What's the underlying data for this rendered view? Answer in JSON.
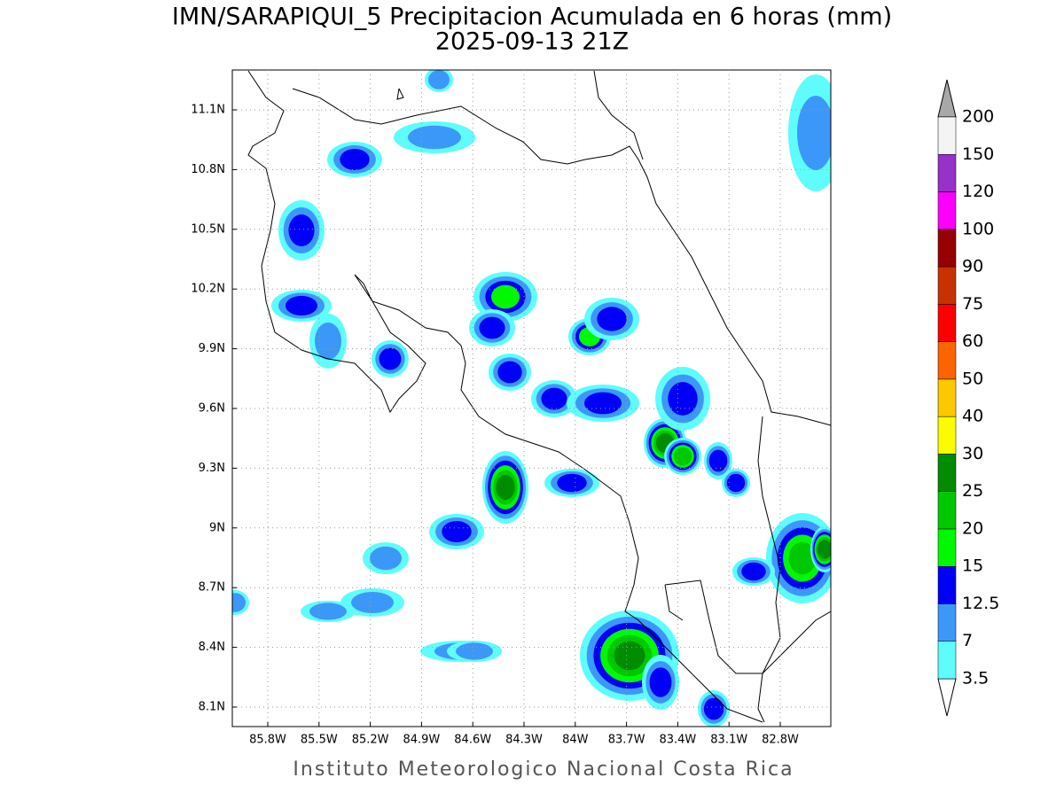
{
  "title": "IMN/SARAPIQUI_5 Precipitacion Acumulada en 6 horas (mm)",
  "subtitle": "2025-09-13 21Z",
  "lat_ticks": [
    "11.1N",
    "10.8N",
    "10.5N",
    "10.2N",
    "9.9N",
    "9.6N",
    "9.3N",
    "9N",
    "8.7N",
    "8.4N",
    "8.1N"
  ],
  "lon_ticks": [
    "85.8W",
    "85.5W",
    "85.2W",
    "84.9W",
    "84.6W",
    "84.3W",
    "84W",
    "83.7W",
    "83.4W",
    "83.1W",
    "82.8W"
  ],
  "colorbar": {
    "levels": [
      "3.5",
      "7",
      "12.5",
      "15",
      "20",
      "25",
      "30",
      "40",
      "50",
      "60",
      "75",
      "90",
      "100",
      "120",
      "150",
      "200"
    ],
    "colors": [
      "#ffffff",
      "#5ffcfc",
      "#3c98f8",
      "#0000f8",
      "#00f800",
      "#00c800",
      "#008c00",
      "#fcfc00",
      "#fcc800",
      "#fc6400",
      "#fc0000",
      "#c83200",
      "#960000",
      "#fc00fc",
      "#9632c8",
      "#f4f4f4",
      "#a8a8a8"
    ]
  },
  "footer": "Instituto Meteorologico Nacional Costa Rica"
}
